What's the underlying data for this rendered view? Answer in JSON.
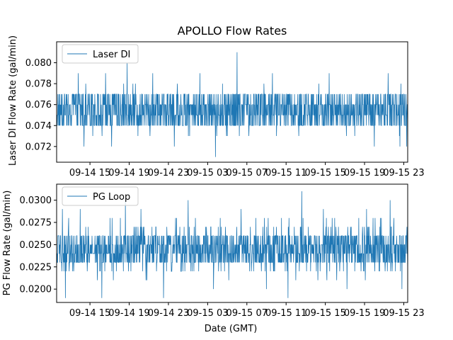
{
  "chart_data": {
    "type": "line",
    "title": "APOLLO Flow Rates",
    "xlabel": "Date (GMT)",
    "line_color": "#1f77b4",
    "x_tick_labels": [
      "09-14 15",
      "09-14 19",
      "09-14 23",
      "09-15 03",
      "09-15 07",
      "09-15 11",
      "09-15 15",
      "09-15 19",
      "09-15 23"
    ],
    "x_tick_hours": [
      15,
      19,
      23,
      27,
      31,
      35,
      39,
      43,
      47
    ],
    "x_range_hours": [
      11.6,
      47.4
    ],
    "panels": [
      {
        "name": "laser-di",
        "legend": "Laser DI",
        "ylabel": "Laser DI Flow Rate (gal/min)",
        "ylim": [
          0.0705,
          0.082
        ],
        "yticks": [
          0.072,
          0.074,
          0.076,
          0.078,
          0.08
        ],
        "ytick_labels": [
          "0.072",
          "0.074",
          "0.076",
          "0.078",
          "0.080"
        ],
        "levels": [
          0.074,
          0.075,
          0.076,
          0.077
        ],
        "typical_low": 0.074,
        "typical_high": 0.077,
        "resolution": 0.001,
        "spikes": [
          {
            "hour": 13.8,
            "value": 0.079
          },
          {
            "hour": 14.4,
            "value": 0.072
          },
          {
            "hour": 16.6,
            "value": 0.079
          },
          {
            "hour": 17.2,
            "value": 0.072
          },
          {
            "hour": 18.8,
            "value": 0.08
          },
          {
            "hour": 19.9,
            "value": 0.073
          },
          {
            "hour": 21.4,
            "value": 0.079
          },
          {
            "hour": 23.6,
            "value": 0.072
          },
          {
            "hour": 26.2,
            "value": 0.079
          },
          {
            "hour": 27.8,
            "value": 0.071
          },
          {
            "hour": 30.0,
            "value": 0.081
          },
          {
            "hour": 31.2,
            "value": 0.073
          },
          {
            "hour": 33.6,
            "value": 0.079
          },
          {
            "hour": 36.3,
            "value": 0.073
          },
          {
            "hour": 39.4,
            "value": 0.079
          },
          {
            "hour": 42.0,
            "value": 0.073
          },
          {
            "hour": 44.0,
            "value": 0.072
          },
          {
            "hour": 45.4,
            "value": 0.079
          },
          {
            "hour": 46.6,
            "value": 0.072
          },
          {
            "hour": 47.3,
            "value": 0.072
          }
        ]
      },
      {
        "name": "pg-loop",
        "legend": "PG Loop",
        "ylabel": "PG Flow Rate (gal/min)",
        "ylim": [
          0.0185,
          0.0318
        ],
        "yticks": [
          0.02,
          0.0225,
          0.025,
          0.0275,
          0.03
        ],
        "ytick_labels": [
          "0.0200",
          "0.0225",
          "0.0250",
          "0.0275",
          "0.0300"
        ],
        "levels": [
          0.023,
          0.024,
          0.025,
          0.026
        ],
        "typical_low": 0.022,
        "typical_high": 0.027,
        "resolution": 0.001,
        "spikes": [
          {
            "hour": 12.2,
            "value": 0.029
          },
          {
            "hour": 12.5,
            "value": 0.019
          },
          {
            "hour": 14.0,
            "value": 0.029
          },
          {
            "hour": 16.2,
            "value": 0.019
          },
          {
            "hour": 18.6,
            "value": 0.03
          },
          {
            "hour": 20.2,
            "value": 0.029
          },
          {
            "hour": 22.5,
            "value": 0.019
          },
          {
            "hour": 25.0,
            "value": 0.03
          },
          {
            "hour": 27.6,
            "value": 0.02
          },
          {
            "hour": 30.4,
            "value": 0.029
          },
          {
            "hour": 33.0,
            "value": 0.02
          },
          {
            "hour": 35.2,
            "value": 0.019
          },
          {
            "hour": 36.6,
            "value": 0.031
          },
          {
            "hour": 38.8,
            "value": 0.029
          },
          {
            "hour": 41.2,
            "value": 0.02
          },
          {
            "hour": 43.2,
            "value": 0.029
          },
          {
            "hour": 45.6,
            "value": 0.03
          },
          {
            "hour": 46.8,
            "value": 0.02
          }
        ]
      }
    ]
  }
}
